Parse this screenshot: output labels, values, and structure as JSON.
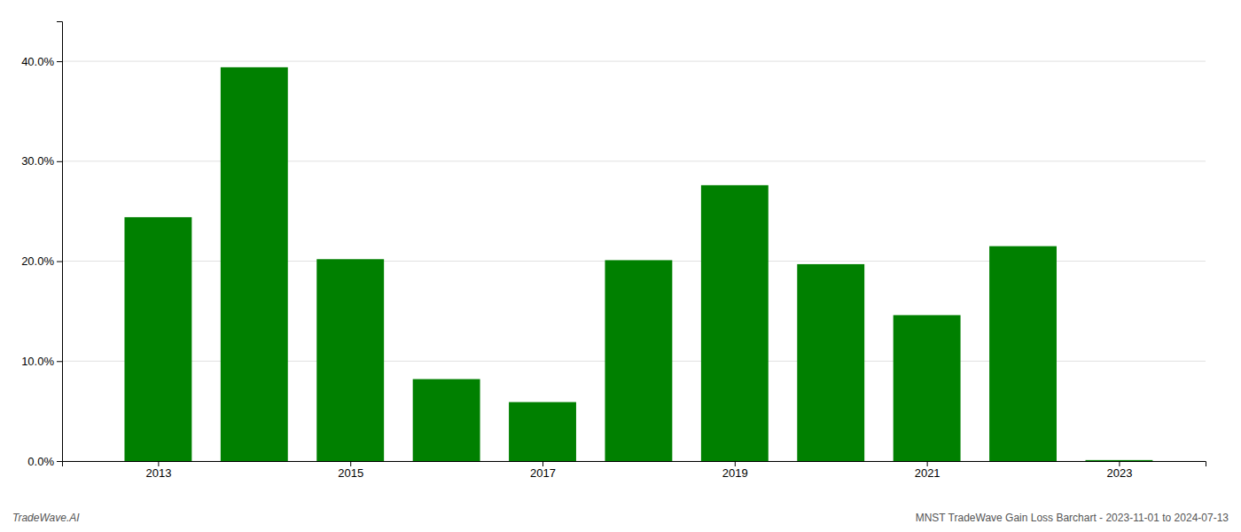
{
  "chart_data": {
    "type": "bar",
    "x": [
      2013,
      2014,
      2015,
      2016,
      2017,
      2018,
      2019,
      2020,
      2021,
      2022,
      2023
    ],
    "values": [
      0.244,
      0.394,
      0.202,
      0.082,
      0.059,
      0.201,
      0.276,
      0.197,
      0.146,
      0.215,
      0.001
    ],
    "color": "#008000",
    "xlim": [
      2012.0,
      2023.9
    ],
    "xticks": [
      2013,
      2015,
      2017,
      2019,
      2021,
      2023
    ],
    "ylim": [
      0,
      0.44
    ],
    "yticks": [
      {
        "value": 0.0,
        "label": "0.0%"
      },
      {
        "value": 0.1,
        "label": "10.0%"
      },
      {
        "value": 0.2,
        "label": "20.0%"
      },
      {
        "value": 0.3,
        "label": "30.0%"
      },
      {
        "value": 0.4,
        "label": "40.0%"
      }
    ],
    "grid": true,
    "annotations": [
      "TradeWave.AI",
      "MNST TradeWave Gain Loss Barchart - 2023-11-01 to 2024-07-13"
    ]
  }
}
